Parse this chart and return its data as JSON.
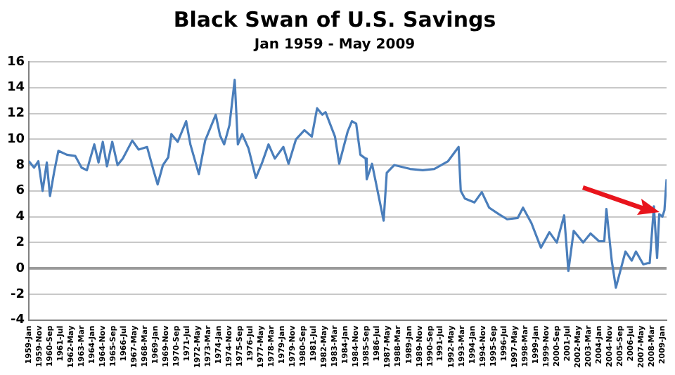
{
  "chart_data": {
    "type": "line",
    "title": "Black Swan of U.S. Savings",
    "subtitle": "Jan 1959 - May 2009",
    "x": [
      "1959-01",
      "1959-06",
      "1959-10",
      "1960-02",
      "1960-06",
      "1960-09",
      "1961-01",
      "1961-05",
      "1962-01",
      "1962-09",
      "1963-03",
      "1963-08",
      "1964-03",
      "1964-07",
      "1964-11",
      "1965-03",
      "1965-08",
      "1966-01",
      "1966-06",
      "1967-03",
      "1967-09",
      "1968-05",
      "1968-11",
      "1969-03",
      "1969-08",
      "1970-01",
      "1970-04",
      "1970-10",
      "1971-06",
      "1971-10",
      "1972-06",
      "1972-12",
      "1973-10",
      "1974-02",
      "1974-06",
      "1974-11",
      "1975-04",
      "1975-07",
      "1975-11",
      "1976-05",
      "1976-12",
      "1977-06",
      "1977-12",
      "1978-06",
      "1979-02",
      "1979-07",
      "1980-02",
      "1980-10",
      "1981-05",
      "1981-10",
      "1982-03",
      "1982-06",
      "1983-03",
      "1983-07",
      "1984-03",
      "1984-07",
      "1984-11",
      "1985-03",
      "1985-08",
      "1985-09",
      "1986-02",
      "1987-01",
      "1987-04",
      "1987-11",
      "1989-02",
      "1990-02",
      "1991-01",
      "1992-02",
      "1992-12",
      "1993-02",
      "1993-06",
      "1994-03",
      "1994-10",
      "1995-05",
      "1996-02",
      "1996-10",
      "1997-08",
      "1998-01",
      "1998-09",
      "1999-06",
      "2000-02",
      "2000-09",
      "2001-04",
      "2001-08",
      "2002-01",
      "2002-10",
      "2003-05",
      "2004-01",
      "2004-06",
      "2004-08",
      "2005-01",
      "2005-05",
      "2006-02",
      "2006-08",
      "2006-12",
      "2007-07",
      "2007-11",
      "2008-01",
      "2008-05",
      "2008-08",
      "2008-10",
      "2009-01",
      "2009-03",
      "2009-05"
    ],
    "series": [
      {
        "color": "#4a7ebb",
        "values": [
          8.3,
          7.8,
          8.3,
          6.0,
          8.2,
          5.6,
          7.5,
          9.1,
          8.8,
          8.7,
          7.8,
          7.6,
          9.6,
          8.2,
          9.8,
          7.9,
          9.8,
          8.0,
          8.5,
          9.9,
          9.2,
          9.4,
          7.6,
          6.5,
          8.0,
          8.6,
          10.4,
          9.8,
          11.4,
          9.6,
          7.3,
          9.9,
          11.9,
          10.3,
          9.6,
          11.1,
          14.6,
          9.6,
          10.4,
          9.3,
          7.0,
          8.2,
          9.6,
          8.5,
          9.4,
          8.1,
          10.0,
          10.7,
          10.2,
          12.4,
          11.9,
          12.1,
          10.2,
          8.1,
          10.6,
          11.4,
          11.2,
          8.8,
          8.5,
          6.9,
          8.1,
          3.7,
          7.4,
          8.0,
          7.7,
          7.6,
          7.7,
          8.3,
          9.4,
          6.0,
          5.4,
          5.1,
          5.9,
          4.7,
          4.2,
          3.8,
          3.9,
          4.7,
          3.5,
          1.6,
          2.8,
          2.0,
          4.1,
          -0.2,
          2.9,
          2.0,
          2.7,
          2.1,
          2.1,
          4.6,
          0.6,
          -1.5,
          1.3,
          0.6,
          1.3,
          0.3,
          0.4,
          0.4,
          4.8,
          0.8,
          4.2,
          4.0,
          4.5,
          6.9
        ]
      }
    ],
    "xlim": [
      "1959-01",
      "2009-05"
    ],
    "xticks": [
      {
        "value": "1959-01",
        "label": "1959-Jan"
      },
      {
        "value": "1959-11",
        "label": "1959-Nov"
      },
      {
        "value": "1960-09",
        "label": "1960-Sep"
      },
      {
        "value": "1961-07",
        "label": "1961-Jul"
      },
      {
        "value": "1962-05",
        "label": "1962-May"
      },
      {
        "value": "1963-03",
        "label": "1963-Mar"
      },
      {
        "value": "1964-01",
        "label": "1964-Jan"
      },
      {
        "value": "1964-11",
        "label": "1964-Nov"
      },
      {
        "value": "1965-09",
        "label": "1965-Sep"
      },
      {
        "value": "1966-07",
        "label": "1966-Jul"
      },
      {
        "value": "1967-05",
        "label": "1967-May"
      },
      {
        "value": "1968-03",
        "label": "1968-Mar"
      },
      {
        "value": "1969-01",
        "label": "1969-Jan"
      },
      {
        "value": "1969-11",
        "label": "1969-Nov"
      },
      {
        "value": "1970-09",
        "label": "1970-Sep"
      },
      {
        "value": "1971-07",
        "label": "1971-Jul"
      },
      {
        "value": "1972-05",
        "label": "1972-May"
      },
      {
        "value": "1973-03",
        "label": "1973-Mar"
      },
      {
        "value": "1974-01",
        "label": "1974-Jan"
      },
      {
        "value": "1974-11",
        "label": "1974-Nov"
      },
      {
        "value": "1975-09",
        "label": "1975-Sep"
      },
      {
        "value": "1976-07",
        "label": "1976-Jul"
      },
      {
        "value": "1977-05",
        "label": "1977-May"
      },
      {
        "value": "1978-03",
        "label": "1978-Mar"
      },
      {
        "value": "1979-01",
        "label": "1979-Jan"
      },
      {
        "value": "1979-11",
        "label": "1979-Nov"
      },
      {
        "value": "1980-09",
        "label": "1980-Sep"
      },
      {
        "value": "1981-07",
        "label": "1981-Jul"
      },
      {
        "value": "1982-05",
        "label": "1982-May"
      },
      {
        "value": "1983-03",
        "label": "1983-Mar"
      },
      {
        "value": "1984-01",
        "label": "1984-Jan"
      },
      {
        "value": "1984-11",
        "label": "1984-Nov"
      },
      {
        "value": "1985-09",
        "label": "1985-Sep"
      },
      {
        "value": "1986-07",
        "label": "1986-Jul"
      },
      {
        "value": "1987-05",
        "label": "1987-May"
      },
      {
        "value": "1988-03",
        "label": "1988-Mar"
      },
      {
        "value": "1989-01",
        "label": "1989-Jan"
      },
      {
        "value": "1989-11",
        "label": "1989-Nov"
      },
      {
        "value": "1990-09",
        "label": "1990-Sep"
      },
      {
        "value": "1991-07",
        "label": "1991-Jul"
      },
      {
        "value": "1992-05",
        "label": "1992-May"
      },
      {
        "value": "1993-03",
        "label": "1993-Mar"
      },
      {
        "value": "1994-01",
        "label": "1994-Jan"
      },
      {
        "value": "1994-11",
        "label": "1994-Nov"
      },
      {
        "value": "1995-09",
        "label": "1995-Sep"
      },
      {
        "value": "1996-07",
        "label": "1996-Jul"
      },
      {
        "value": "1997-05",
        "label": "1997-May"
      },
      {
        "value": "1998-03",
        "label": "1998-Mar"
      },
      {
        "value": "1999-01",
        "label": "1999-Jan"
      },
      {
        "value": "1999-11",
        "label": "1999-Nov"
      },
      {
        "value": "2000-09",
        "label": "2000-Sep"
      },
      {
        "value": "2001-07",
        "label": "2001-Jul"
      },
      {
        "value": "2002-05",
        "label": "2002-May"
      },
      {
        "value": "2003-03",
        "label": "2003-Mar"
      },
      {
        "value": "2004-01",
        "label": "2004-Jan"
      },
      {
        "value": "2004-11",
        "label": "2004-Nov"
      },
      {
        "value": "2005-09",
        "label": "2005-Sep"
      },
      {
        "value": "2006-07",
        "label": "2006-Jul"
      },
      {
        "value": "2007-05",
        "label": "2007-May"
      },
      {
        "value": "2008-03",
        "label": "2008-Mar"
      },
      {
        "value": "2009-01",
        "label": "2009-Jan"
      }
    ],
    "ylim": [
      -4,
      16
    ],
    "yticks": [
      -4,
      -2,
      0,
      2,
      4,
      6,
      8,
      10,
      12,
      14,
      16
    ],
    "grid": "y",
    "legend": false,
    "marker": "none",
    "line_style": "solid"
  }
}
